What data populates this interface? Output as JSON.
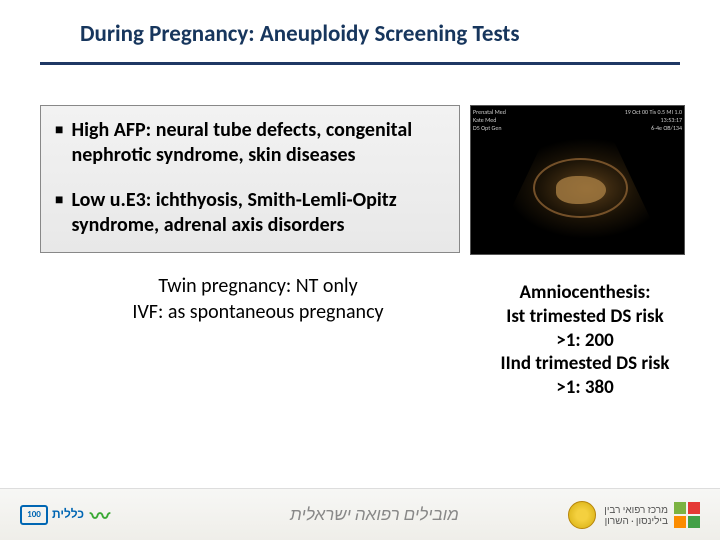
{
  "title": "During Pregnancy: Aneuploidy Screening Tests",
  "bullets": [
    "High AFP: neural tube defects, congenital nephrotic syndrome, skin diseases",
    "Low u.E3: ichthyosis, Smith-Lemli-Opitz syndrome, adrenal axis disorders"
  ],
  "notes": [
    "Twin pregnancy:  NT only",
    "IVF: as spontaneous pregnancy"
  ],
  "amnio": {
    "heading": "Amniocenthesis:",
    "line1": "Ist trimested DS risk",
    "val1": ">1: 200",
    "line2": "IInd trimested DS risk",
    "val2": ">1: 380"
  },
  "ultrasound": {
    "top_left": "Prenatal Med\nKate Med\nD5 Opt Gen",
    "top_right": "19 Oct 00   Tis 0.5  MI 1.0\n13:53:17\n6-4e OB/134"
  },
  "footer": {
    "clalit_text": "כללית",
    "clalit_box": "100",
    "center_text": "מובילים רפואה ישראלית",
    "rabin_line1": "מרכז רפואי רבין",
    "rabin_line2": "בילינסון · השרון"
  },
  "colors": {
    "title_color": "#17365d",
    "underline": "#1f3864",
    "box_border": "#888888",
    "box_bg_top": "#f2f2f2",
    "box_bg_bot": "#e8e8e8"
  }
}
